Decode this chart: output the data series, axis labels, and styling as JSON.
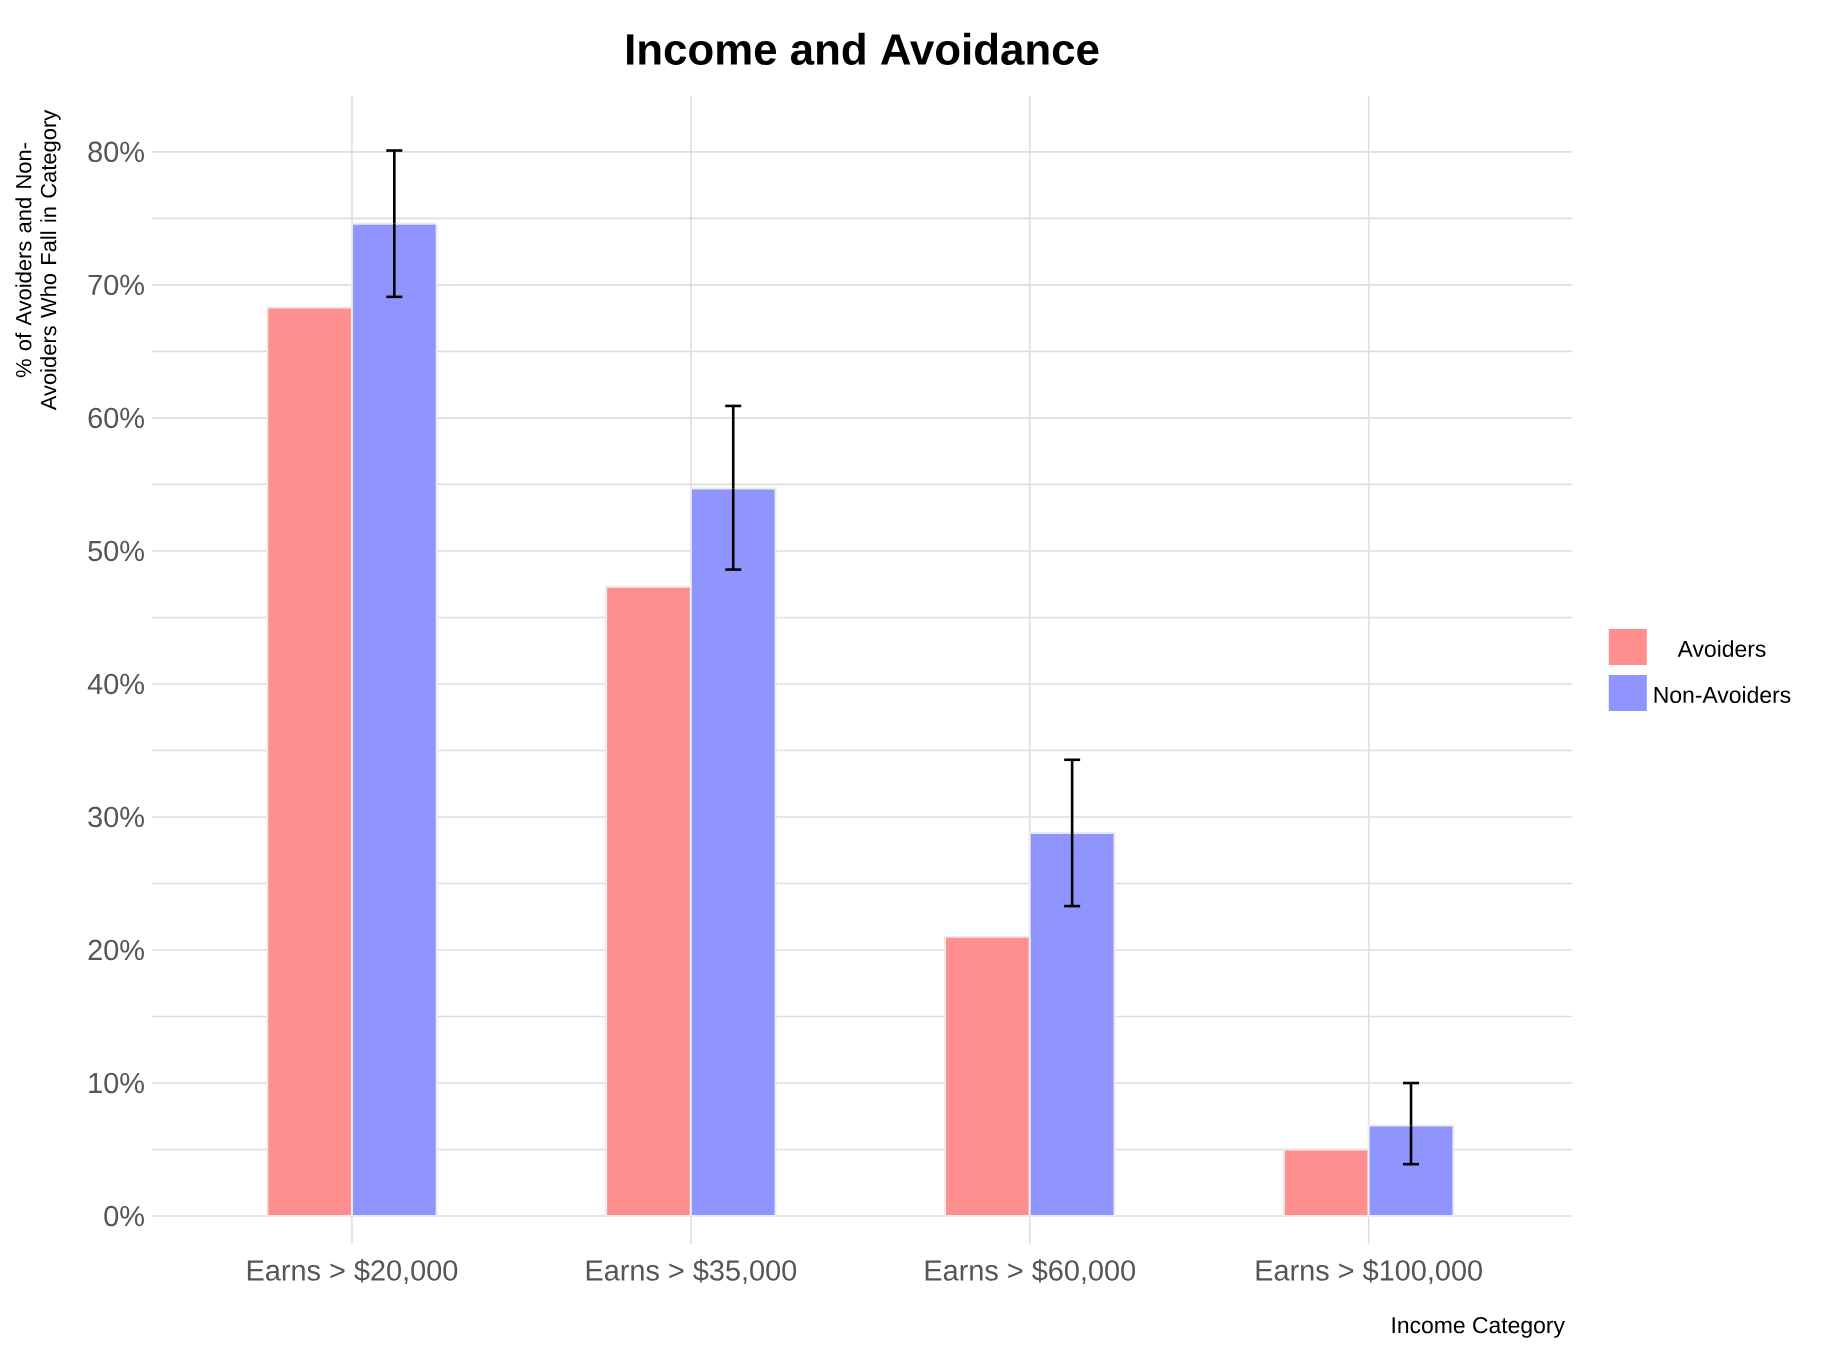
{
  "chart_data": {
    "type": "bar",
    "title": "Income and Avoidance",
    "xlabel": "Income Category",
    "ylabel": "% of Avoiders and Non-Avoiders Who Fall in Category",
    "categories": [
      "Earns > $20,000",
      "Earns > $35,000",
      "Earns > $60,000",
      "Earns > $100,000"
    ],
    "series": [
      {
        "name": "Avoiders",
        "color": "#ff8f8f",
        "values": [
          68.3,
          47.3,
          21.0,
          5.0
        ]
      },
      {
        "name": "Non-Avoiders",
        "color": "#8f94ff",
        "values": [
          74.6,
          54.7,
          28.8,
          6.8
        ],
        "errors": [
          [
            69.1,
            80.1
          ],
          [
            48.6,
            60.9
          ],
          [
            23.3,
            34.3
          ],
          [
            3.9,
            10.0
          ]
        ]
      }
    ],
    "ylim": [
      -2.1,
      84.2
    ],
    "yticks": [
      {
        "value": 0,
        "label": "0%"
      },
      {
        "value": 5,
        "label": null
      },
      {
        "value": 10,
        "label": "10%"
      },
      {
        "value": 15,
        "label": null
      },
      {
        "value": 20,
        "label": "20%"
      },
      {
        "value": 25,
        "label": null
      },
      {
        "value": 30,
        "label": "30%"
      },
      {
        "value": 35,
        "label": null
      },
      {
        "value": 40,
        "label": "40%"
      },
      {
        "value": 45,
        "label": null
      },
      {
        "value": 50,
        "label": "50%"
      },
      {
        "value": 55,
        "label": null
      },
      {
        "value": 60,
        "label": "60%"
      },
      {
        "value": 65,
        "label": null
      },
      {
        "value": 70,
        "label": "70%"
      },
      {
        "value": 75,
        "label": null
      },
      {
        "value": 80,
        "label": "80%"
      }
    ],
    "grid": true,
    "legend": "right"
  }
}
